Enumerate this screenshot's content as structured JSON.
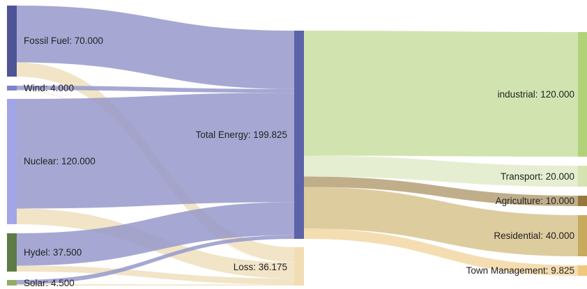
{
  "colors": {
    "fossil": "#4e5496",
    "wind": "#7e83c9",
    "nuclear": "#a3a6e6",
    "hydel": "#5d7b46",
    "solar": "#91ad65",
    "total": "#5d63a9",
    "loss": "#f2dcb4",
    "industrial": "#b2d27a",
    "transport": "#d5e3b2",
    "agriculture": "#96783c",
    "residential": "#c7aa5d",
    "town": "#efc77e",
    "link_to_total": "#9799cb",
    "link_to_loss": "#efdfbd"
  },
  "nodes": [
    {
      "id": "fossil",
      "label": "Fossil Fuel: 70.000"
    },
    {
      "id": "wind",
      "label": "Wind: 4.000"
    },
    {
      "id": "nuclear",
      "label": "Nuclear: 120.000"
    },
    {
      "id": "hydel",
      "label": "Hydel: 37.500"
    },
    {
      "id": "solar",
      "label": "Solar: 4.500"
    },
    {
      "id": "total",
      "label": "Total Energy: 199.825"
    },
    {
      "id": "loss",
      "label": "Loss: 36.175"
    },
    {
      "id": "industrial",
      "label": "industrial: 120.000"
    },
    {
      "id": "transport",
      "label": "Transport: 20.000"
    },
    {
      "id": "agriculture",
      "label": "Agriculture: 10.000"
    },
    {
      "id": "residential",
      "label": "Residential: 40.000"
    },
    {
      "id": "town",
      "label": "Town Management: 9.825"
    }
  ],
  "links": [
    {
      "source": "fossil",
      "target": "total",
      "value": 56.0
    },
    {
      "source": "fossil",
      "target": "loss",
      "value": 14.0
    },
    {
      "source": "wind",
      "target": "total",
      "value": 3.6
    },
    {
      "source": "wind",
      "target": "loss",
      "value": 0.4
    },
    {
      "source": "nuclear",
      "target": "total",
      "value": 105.0
    },
    {
      "source": "nuclear",
      "target": "loss",
      "value": 15.0
    },
    {
      "source": "hydel",
      "target": "total",
      "value": 31.725
    },
    {
      "source": "hydel",
      "target": "loss",
      "value": 5.775
    },
    {
      "source": "solar",
      "target": "total",
      "value": 3.5
    },
    {
      "source": "solar",
      "target": "loss",
      "value": 1.0
    },
    {
      "source": "total",
      "target": "industrial",
      "value": 120.0
    },
    {
      "source": "total",
      "target": "transport",
      "value": 20.0
    },
    {
      "source": "total",
      "target": "agriculture",
      "value": 10.0
    },
    {
      "source": "total",
      "target": "residential",
      "value": 40.0
    },
    {
      "source": "total",
      "target": "town",
      "value": 9.825
    }
  ]
}
